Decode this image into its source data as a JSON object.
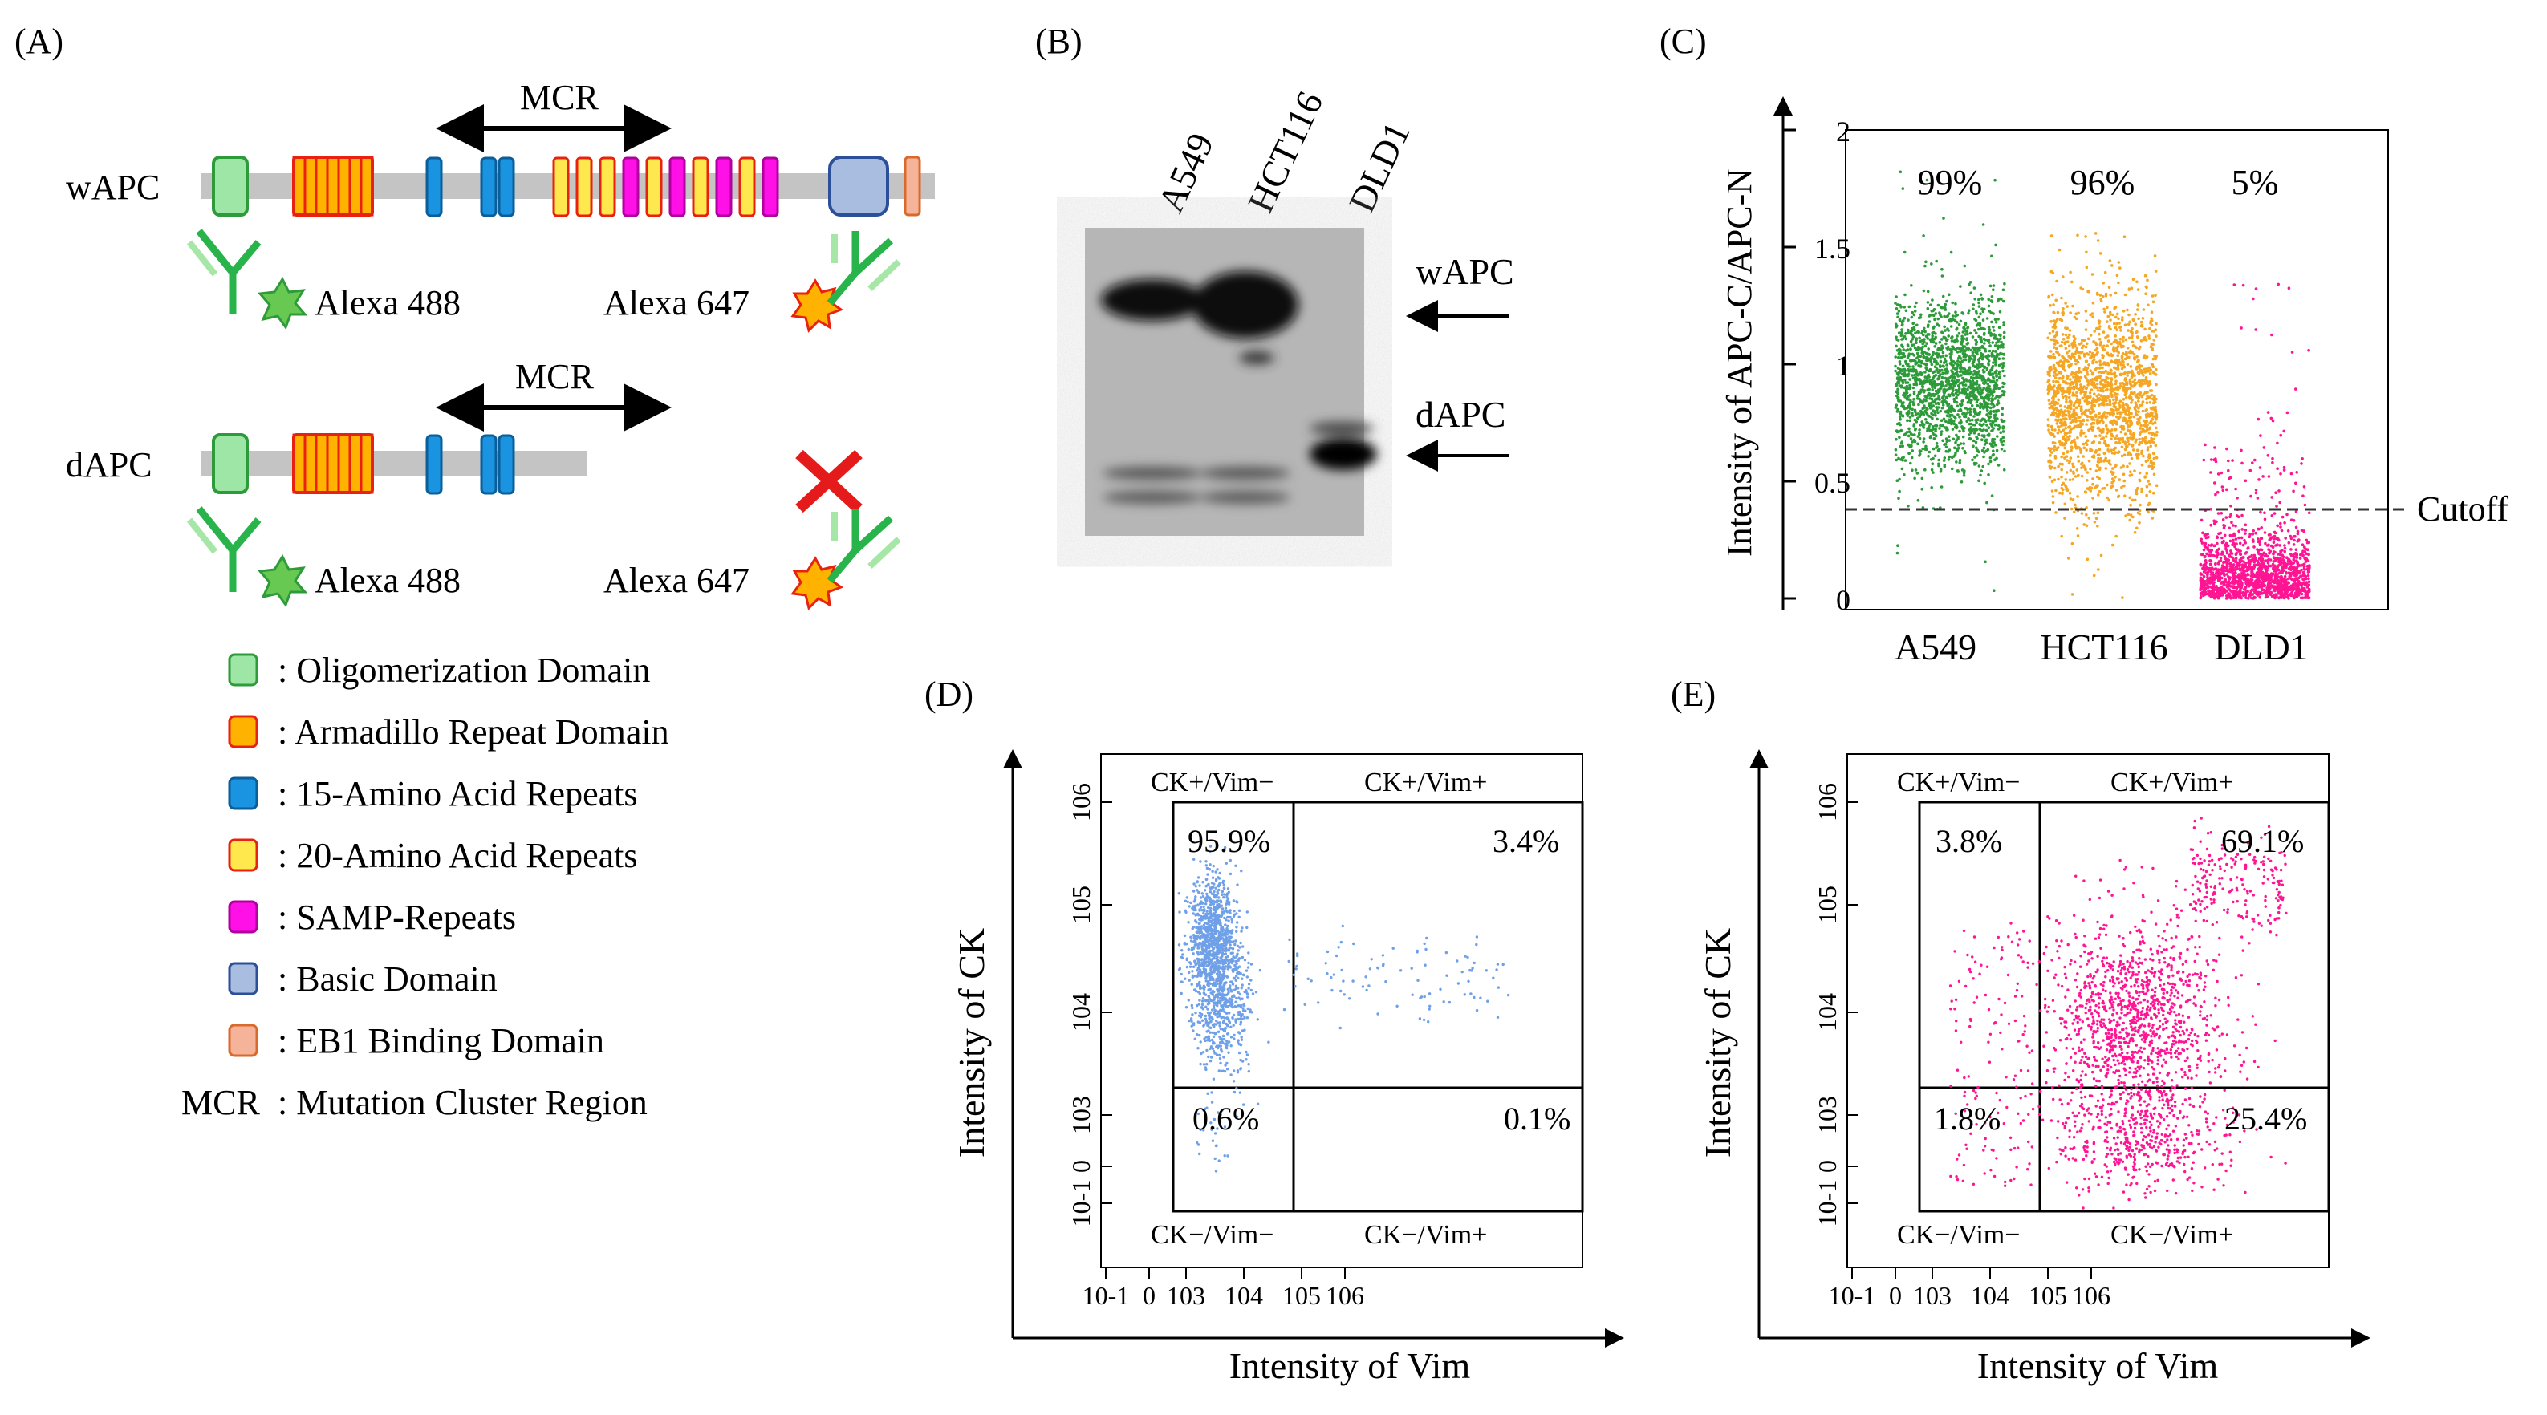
{
  "panels": {
    "a": "(A)",
    "b": "(B)",
    "c": "(C)",
    "d": "(D)",
    "e": "(E)"
  },
  "colors": {
    "green": "#2e9b3a",
    "orange": "#f5a623",
    "pink": "#ff1493",
    "blue": "#6fa0e8",
    "oligomerization": "#9de6a6",
    "armadillo_fill": "#ffb300",
    "armadillo_stroke": "#e8220e",
    "aa15": "#1a93e0",
    "aa20_fill": "#ffe84d",
    "aa20_stroke": "#e8220e",
    "samp": "#ff10e6",
    "basic": "#a8bde0",
    "eb1": "#f5b49a",
    "backbone": "#c4c4c4",
    "cross": "#e51b1b",
    "antibody": "#28b44b"
  },
  "panel_a": {
    "wapc_label": "wAPC",
    "dapc_label": "dAPC",
    "mcr_label": "MCR",
    "alexa488": "Alexa 488",
    "alexa647": "Alexa 647",
    "legend": [
      {
        "key": "oligomerization",
        "text": ": Oligomerization Domain"
      },
      {
        "key": "armadillo",
        "text": ": Armadillo Repeat Domain"
      },
      {
        "key": "aa15",
        "text": ": 15-Amino Acid Repeats"
      },
      {
        "key": "aa20",
        "text": ": 20-Amino Acid Repeats"
      },
      {
        "key": "samp",
        "text": ": SAMP-Repeats"
      },
      {
        "key": "basic",
        "text": ": Basic Domain"
      },
      {
        "key": "eb1",
        "text": ": EB1 Binding Domain"
      }
    ],
    "mcr_legend_key": "MCR",
    "mcr_legend_text": ": Mutation Cluster Region"
  },
  "panel_b": {
    "lanes": [
      "A549",
      "HCT116",
      "DLD1"
    ],
    "band_labels": [
      "wAPC",
      "dAPC"
    ]
  },
  "chart_data": [
    {
      "type": "scatter",
      "title": "",
      "xlabel": "",
      "ylabel": "Intensity of APC-C/APC-N",
      "ylim": [
        0,
        2
      ],
      "y_ticks": [
        "0",
        "0.5",
        "1",
        "1.5",
        "2"
      ],
      "categories": [
        "A549",
        "HCT116",
        "DLD1"
      ],
      "percentages": [
        "99%",
        "96%",
        "5%"
      ],
      "cutoff": 0.38,
      "cutoff_label": "Cutoff",
      "series": [
        {
          "name": "A549",
          "center": 0.92,
          "spread": 0.18,
          "min": 0.0,
          "max": 1.9
        },
        {
          "name": "HCT116",
          "center": 0.85,
          "spread": 0.22,
          "min": 0.0,
          "max": 1.6
        },
        {
          "name": "DLD1",
          "center": 0.12,
          "spread": 0.1,
          "min": 0.0,
          "max": 1.35
        }
      ]
    },
    {
      "type": "scatter",
      "xlabel": "Intensity of Vim",
      "ylabel": "Intensity of CK",
      "x_ticks": [
        "10-1",
        "0",
        "103",
        "104",
        "105",
        "106"
      ],
      "y_ticks": [
        "10-1",
        "0",
        "103",
        "104",
        "105",
        "106"
      ],
      "quadrant_labels": [
        "CK+/Vim−",
        "CK+/Vim+",
        "CK−/Vim−",
        "CK−/Vim+"
      ],
      "quadrant_values": [
        "95.9%",
        "3.4%",
        "0.6%",
        "0.1%"
      ]
    },
    {
      "type": "scatter",
      "xlabel": "Intensity of Vim",
      "ylabel": "Intensity of CK",
      "x_ticks": [
        "10-1",
        "0",
        "103",
        "104",
        "105",
        "106"
      ],
      "y_ticks": [
        "10-1",
        "0",
        "103",
        "104",
        "105",
        "106"
      ],
      "quadrant_labels": [
        "CK+/Vim−",
        "CK+/Vim+",
        "CK−/Vim−",
        "CK−/Vim+"
      ],
      "quadrant_values": [
        "3.8%",
        "69.1%",
        "1.8%",
        "25.4%"
      ]
    }
  ]
}
